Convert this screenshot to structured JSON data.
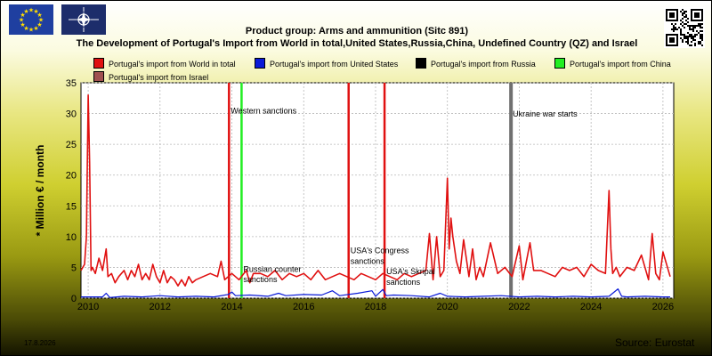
{
  "title_line1": "Product group: Arms and ammunition (Sitc 891)",
  "title_line2": "The Development of Portugal's Import from World in total,United States,Russia,China, Undefined Country (QZ) and Israel",
  "date_stamp": "17.8.2026",
  "source": "Source: Eurostat",
  "icons": {
    "eu_flag": "eu-flag-icon",
    "nato_flag": "nato-flag-icon",
    "qr": "qr-code-icon"
  },
  "legend": [
    {
      "label": "Portugal's import from World in total",
      "color": "#e01010"
    },
    {
      "label": "Portugal's import from United States",
      "color": "#0a1ad8"
    },
    {
      "label": "Portugal's import from Russia",
      "color": "#000000"
    },
    {
      "label": "Portugal's import from China",
      "color": "#22ee22"
    },
    {
      "label": "Portugal's import from Israel",
      "color": "#a05050"
    }
  ],
  "chart_data": {
    "type": "line",
    "ylabel": "* Million € / month",
    "xlabel": "",
    "ylim": [
      0,
      35
    ],
    "xlim": [
      2009.8,
      2026.3
    ],
    "yticks": [
      0,
      5,
      10,
      15,
      20,
      25,
      30,
      35
    ],
    "xticks": [
      2010,
      2012,
      2014,
      2016,
      2018,
      2020,
      2022,
      2024,
      2026
    ],
    "grid": true,
    "legend_position": "top",
    "series": [
      {
        "name": "Portugal's import from World in total",
        "color": "#e01010",
        "x": [
          2009.8,
          2009.9,
          2009.95,
          2010.0,
          2010.04,
          2010.08,
          2010.12,
          2010.2,
          2010.3,
          2010.4,
          2010.5,
          2010.55,
          2010.65,
          2010.75,
          2010.85,
          2011.0,
          2011.1,
          2011.2,
          2011.3,
          2011.4,
          2011.5,
          2011.6,
          2011.7,
          2011.8,
          2011.9,
          2012.0,
          2012.1,
          2012.2,
          2012.3,
          2012.4,
          2012.5,
          2012.6,
          2012.7,
          2012.8,
          2012.9,
          2013.0,
          2013.2,
          2013.4,
          2013.6,
          2013.7,
          2013.8,
          2013.9,
          2014.0,
          2014.2,
          2014.4,
          2014.5,
          2014.6,
          2014.8,
          2015.0,
          2015.2,
          2015.4,
          2015.6,
          2015.8,
          2016.0,
          2016.2,
          2016.4,
          2016.6,
          2016.8,
          2017.0,
          2017.2,
          2017.4,
          2017.6,
          2017.8,
          2018.0,
          2018.2,
          2018.4,
          2018.6,
          2018.8,
          2019.0,
          2019.2,
          2019.4,
          2019.5,
          2019.6,
          2019.7,
          2019.8,
          2019.9,
          2020.0,
          2020.05,
          2020.1,
          2020.15,
          2020.25,
          2020.35,
          2020.45,
          2020.6,
          2020.7,
          2020.8,
          2020.9,
          2021.0,
          2021.2,
          2021.4,
          2021.6,
          2021.8,
          2022.0,
          2022.1,
          2022.2,
          2022.3,
          2022.4,
          2022.6,
          2022.8,
          2023.0,
          2023.2,
          2023.4,
          2023.6,
          2023.8,
          2024.0,
          2024.2,
          2024.4,
          2024.5,
          2024.55,
          2024.6,
          2024.7,
          2024.8,
          2025.0,
          2025.2,
          2025.4,
          2025.6,
          2025.7,
          2025.8,
          2025.9,
          2026.0,
          2026.2
        ],
        "values": [
          4.5,
          5.5,
          10,
          33,
          22,
          4.5,
          5,
          4,
          6.5,
          4.5,
          8,
          3.5,
          4,
          2.5,
          3.5,
          4.5,
          3,
          4.5,
          3.5,
          5.5,
          3,
          4,
          3,
          5.5,
          3.5,
          2.5,
          4.5,
          2.5,
          3.5,
          3,
          2,
          3,
          2,
          3.5,
          2.5,
          3,
          3.5,
          4,
          3.5,
          6,
          3,
          3.5,
          4,
          3,
          4.5,
          2.5,
          4,
          4,
          3.5,
          4.5,
          3,
          4,
          3.5,
          4,
          3,
          4.5,
          3,
          3.5,
          4,
          3.5,
          3,
          4,
          3.5,
          3,
          4,
          3.5,
          3,
          4,
          3.5,
          4,
          4.5,
          10.5,
          3,
          10,
          3.5,
          4.5,
          19.5,
          8,
          13,
          10,
          6,
          4,
          9.5,
          3.5,
          8,
          3,
          5,
          3.5,
          9,
          4,
          5,
          3.5,
          8.5,
          3,
          6,
          9,
          4.5,
          4.5,
          4,
          3.5,
          5,
          4.5,
          5,
          3.5,
          5.5,
          4.5,
          4,
          17.5,
          8,
          4,
          5,
          3.5,
          5,
          4.5,
          7,
          3,
          10.5,
          4,
          3,
          7.5,
          3.5
        ]
      },
      {
        "name": "Portugal's import from United States",
        "color": "#0a1ad8",
        "x": [
          2009.8,
          2010.4,
          2010.5,
          2010.6,
          2011.0,
          2011.5,
          2012.0,
          2012.5,
          2013.0,
          2013.5,
          2013.9,
          2014.0,
          2014.1,
          2014.5,
          2015.0,
          2015.3,
          2015.5,
          2016.0,
          2016.5,
          2016.8,
          2017.0,
          2017.5,
          2017.9,
          2018.0,
          2018.2,
          2018.3,
          2018.5,
          2019.0,
          2019.5,
          2019.8,
          2020.0,
          2020.5,
          2021.0,
          2021.5,
          2022.0,
          2022.5,
          2023.0,
          2023.5,
          2024.0,
          2024.5,
          2024.75,
          2024.85,
          2025.0,
          2025.5,
          2026.0,
          2026.2
        ],
        "values": [
          0.2,
          0.2,
          0.8,
          0.1,
          0.3,
          0.2,
          0.4,
          0.2,
          0.3,
          0.2,
          0.6,
          1,
          0.4,
          0.5,
          0.3,
          0.8,
          0.4,
          0.6,
          0.5,
          1.2,
          0.4,
          0.8,
          1.2,
          0.3,
          1.4,
          0.4,
          0.5,
          0.4,
          0.2,
          0.8,
          0.3,
          0.2,
          0.3,
          0.4,
          0.2,
          0.3,
          0.2,
          0.3,
          0.2,
          0.3,
          1.5,
          0.3,
          0.2,
          0.3,
          0.2,
          0.2
        ]
      }
    ],
    "vertical_markers": [
      {
        "x": 2013.92,
        "color": "#e01010"
      },
      {
        "x": 2014.27,
        "color": "#22ee22"
      },
      {
        "x": 2017.25,
        "color": "#e01010"
      },
      {
        "x": 2018.25,
        "color": "#e01010"
      },
      {
        "x": 2021.77,
        "color": "#707070"
      }
    ],
    "annotations": [
      {
        "text": "Western sanctions",
        "x": 2013.92,
        "y": 30
      },
      {
        "text": "Ukraine war starts",
        "x": 2021.77,
        "y": 29.5
      },
      {
        "text": "USA's Congress",
        "x": 2017.25,
        "y": 7.3
      },
      {
        "text": "sanctions",
        "x": 2017.25,
        "y": 5.6
      },
      {
        "text": "Russian counter",
        "x": 2014.27,
        "y": 4.3
      },
      {
        "text": "sanctions",
        "x": 2014.27,
        "y": 2.6
      },
      {
        "text": "USA's Skripal",
        "x": 2018.25,
        "y": 3.9
      },
      {
        "text": "sanctions",
        "x": 2018.25,
        "y": 2.2
      }
    ]
  }
}
